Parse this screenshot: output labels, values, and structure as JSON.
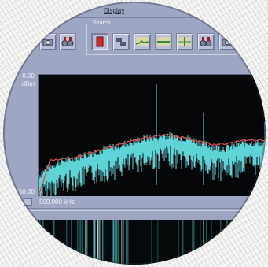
{
  "menu": {
    "display_label": "Display"
  },
  "toolbar": {
    "search_group_label": "Search",
    "buttons": [
      {
        "icon": "camera-icon"
      },
      {
        "icon": "binoculars-icon"
      },
      {
        "icon": "stop-icon"
      },
      {
        "icon": "step-icon"
      },
      {
        "icon": "trace-icon"
      },
      {
        "icon": "band-icon"
      },
      {
        "icon": "split-icon"
      },
      {
        "icon": "binoculars-icon"
      },
      {
        "icon": "camera-icon"
      }
    ]
  },
  "spectrum": {
    "y_top_label": "0.00",
    "y_unit_label": "dBm",
    "y_bottom_label": "-150.00",
    "center_frequency_label": "500.000 kHz",
    "colors": {
      "trace": "#5fd3d6",
      "max_hold": "#d9504f",
      "background": "#050708"
    }
  },
  "chart_data": {
    "type": "line",
    "ylabel": "dBm",
    "ylim": [
      -150,
      0
    ],
    "series": [
      {
        "values": [
          -130,
          -118,
          -112,
          -108,
          -104,
          -100,
          -96,
          -92,
          -88,
          -84,
          -82,
          -80,
          -82,
          -85,
          -90,
          -95,
          -96,
          -92,
          -88,
          -90,
          -92
        ]
      },
      {
        "values": [
          -150,
          -105,
          -104,
          -102,
          -98,
          -94,
          -90,
          -86,
          -82,
          -78,
          -76,
          -74,
          -77,
          -80,
          -84,
          -86,
          -85,
          -82,
          -80,
          -81,
          -80
        ]
      }
    ]
  }
}
